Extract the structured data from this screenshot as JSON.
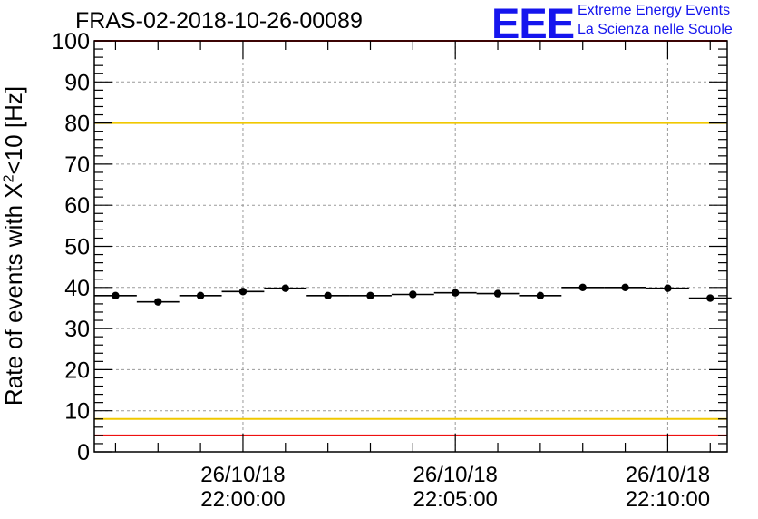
{
  "chart_data": {
    "type": "scatter",
    "title": "FRAS-02-2018-10-26-00089",
    "xlabel": "",
    "ylabel_pre": "Rate of events with X",
    "ylabel_sup": "2",
    "ylabel_post": "<10 [Hz]",
    "ylim": [
      0,
      100
    ],
    "yticks": [
      "0",
      "10",
      "20",
      "30",
      "40",
      "50",
      "60",
      "70",
      "80",
      "90",
      "100"
    ],
    "x_unit": "minutes after 21:56:30",
    "xlim": [
      0,
      14.9
    ],
    "xticks": [
      {
        "x": 3.5,
        "date": "26/10/18",
        "time": "22:00:00"
      },
      {
        "x": 8.5,
        "date": "26/10/18",
        "time": "22:05:00"
      },
      {
        "x": 13.5,
        "date": "26/10/18",
        "time": "22:10:00"
      }
    ],
    "series": [
      {
        "name": "rate",
        "bin_width": 1.0,
        "x": [
          0.5,
          1.5,
          2.5,
          3.5,
          4.5,
          5.5,
          6.5,
          7.5,
          8.5,
          9.5,
          10.5,
          11.5,
          12.5,
          13.5,
          14.5
        ],
        "values": [
          38.0,
          36.5,
          38.0,
          39.0,
          39.8,
          38.0,
          38.0,
          38.3,
          38.7,
          38.5,
          38.0,
          40.0,
          40.0,
          39.8,
          37.4
        ]
      }
    ],
    "reference_lines": [
      {
        "name": "upper-red-limit",
        "y": 100,
        "color": "#ee1111"
      },
      {
        "name": "upper-yellow-limit",
        "y": 80,
        "color": "#f0c800"
      },
      {
        "name": "lower-yellow-limit",
        "y": 8,
        "color": "#f0c800"
      },
      {
        "name": "lower-red-limit",
        "y": 4,
        "color": "#ee1111"
      }
    ],
    "grid": true
  },
  "logo": {
    "text": "EEE",
    "line1": "Extreme Energy Events",
    "line2": "La Scienza nelle Scuole",
    "color": "#1515ee"
  }
}
